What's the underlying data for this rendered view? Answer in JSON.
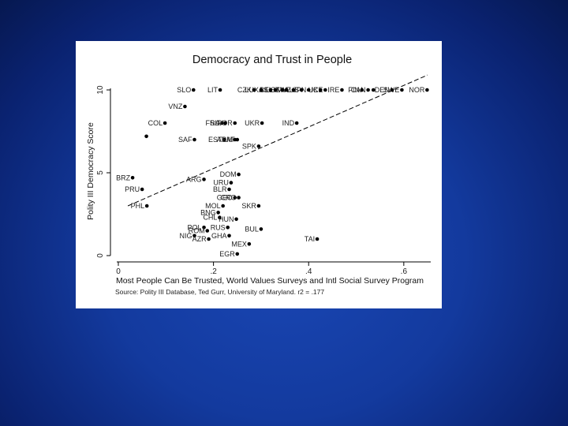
{
  "chart_data": {
    "type": "scatter",
    "title": "Democracy and Trust in People",
    "xlabel": "Most People Can Be Trusted, World Values Surveys and Intl Social Survey Program",
    "ylabel": "Polity III Democracy Score",
    "note": "Source: Polity III Database, Ted Gurr, University of Maryland.  r2 = .177",
    "xlim": [
      0,
      0.65
    ],
    "ylim": [
      0,
      10
    ],
    "xticks": [
      {
        "value": 0,
        "label": "0"
      },
      {
        "value": 0.2,
        "label": ".2"
      },
      {
        "value": 0.4,
        "label": ".4"
      },
      {
        "value": 0.6,
        "label": ".6"
      }
    ],
    "yticks": [
      {
        "value": 0,
        "label": "0"
      },
      {
        "value": 5,
        "label": "5"
      },
      {
        "value": 10,
        "label": "10"
      }
    ],
    "grid": false,
    "fit_line": {
      "x": [
        0.02,
        0.65
      ],
      "y": [
        3.0,
        10.9
      ]
    },
    "points": [
      {
        "label": "NOR",
        "x": 0.649,
        "y": 10
      },
      {
        "label": "SWE",
        "x": 0.596,
        "y": 10
      },
      {
        "label": "DEN",
        "x": 0.575,
        "y": 10
      },
      {
        "label": "CAN",
        "x": 0.525,
        "y": 10
      },
      {
        "label": "FIN",
        "x": 0.512,
        "y": 10
      },
      {
        "label": "",
        "x": 0.536,
        "y": 10
      },
      {
        "label": "IRE",
        "x": 0.47,
        "y": 10
      },
      {
        "label": "ICE",
        "x": 0.435,
        "y": 10
      },
      {
        "label": "UK",
        "x": 0.425,
        "y": 10
      },
      {
        "label": "JPN",
        "x": 0.4,
        "y": 10
      },
      {
        "label": "AUS",
        "x": 0.385,
        "y": 10
      },
      {
        "label": "SWZ",
        "x": 0.368,
        "y": 10
      },
      {
        "label": "ITA",
        "x": 0.353,
        "y": 10
      },
      {
        "label": "USA",
        "x": 0.345,
        "y": 10
      },
      {
        "label": "BEL",
        "x": 0.33,
        "y": 10
      },
      {
        "label": "AS",
        "x": 0.32,
        "y": 10
      },
      {
        "label": "LUX",
        "x": 0.3,
        "y": 10
      },
      {
        "label": "CZK",
        "x": 0.285,
        "y": 10
      },
      {
        "label": "LIT",
        "x": 0.214,
        "y": 10
      },
      {
        "label": "SLO",
        "x": 0.158,
        "y": 10
      },
      {
        "label": "VNZ",
        "x": 0.14,
        "y": 9
      },
      {
        "label": "FRA",
        "x": 0.218,
        "y": 8
      },
      {
        "label": "SLV",
        "x": 0.225,
        "y": 8
      },
      {
        "label": "POR",
        "x": 0.245,
        "y": 8
      },
      {
        "label": "UKR",
        "x": 0.302,
        "y": 8
      },
      {
        "label": "IND",
        "x": 0.375,
        "y": 8
      },
      {
        "label": "COL",
        "x": 0.098,
        "y": 8
      },
      {
        "label": "EST",
        "x": 0.223,
        "y": 7
      },
      {
        "label": "LAT",
        "x": 0.25,
        "y": 7
      },
      {
        "label": "SAF",
        "x": 0.16,
        "y": 7
      },
      {
        "label": "ARM",
        "x": 0.245,
        "y": 7
      },
      {
        "label": "",
        "x": 0.059,
        "y": 7.2
      },
      {
        "label": "SPK",
        "x": 0.295,
        "y": 6.6
      },
      {
        "label": "DOM",
        "x": 0.253,
        "y": 4.9
      },
      {
        "label": "ARG",
        "x": 0.18,
        "y": 4.6
      },
      {
        "label": "URU",
        "x": 0.237,
        "y": 4.4
      },
      {
        "label": "BRZ",
        "x": 0.03,
        "y": 4.7
      },
      {
        "label": "PRU",
        "x": 0.05,
        "y": 4.0
      },
      {
        "label": "BLR",
        "x": 0.233,
        "y": 4.0
      },
      {
        "label": "GEO",
        "x": 0.245,
        "y": 3.5
      },
      {
        "label": "CRO",
        "x": 0.253,
        "y": 3.5
      },
      {
        "label": "PHL",
        "x": 0.06,
        "y": 3.0
      },
      {
        "label": "MOL",
        "x": 0.22,
        "y": 3.0
      },
      {
        "label": "SKR",
        "x": 0.295,
        "y": 3.0
      },
      {
        "label": "BNG",
        "x": 0.21,
        "y": 2.6
      },
      {
        "label": "CHL",
        "x": 0.213,
        "y": 2.3
      },
      {
        "label": "HUN",
        "x": 0.248,
        "y": 2.2
      },
      {
        "label": "POL",
        "x": 0.18,
        "y": 1.7
      },
      {
        "label": "RUS",
        "x": 0.23,
        "y": 1.7
      },
      {
        "label": "BUL",
        "x": 0.3,
        "y": 1.6
      },
      {
        "label": "ROM",
        "x": 0.187,
        "y": 1.5
      },
      {
        "label": "NIG",
        "x": 0.16,
        "y": 1.2
      },
      {
        "label": "GHA",
        "x": 0.233,
        "y": 1.2
      },
      {
        "label": "AZR",
        "x": 0.19,
        "y": 1.0
      },
      {
        "label": "MEX",
        "x": 0.275,
        "y": 0.7
      },
      {
        "label": "TAI",
        "x": 0.418,
        "y": 1.0
      },
      {
        "label": "EGR",
        "x": 0.25,
        "y": 0.1
      }
    ]
  }
}
